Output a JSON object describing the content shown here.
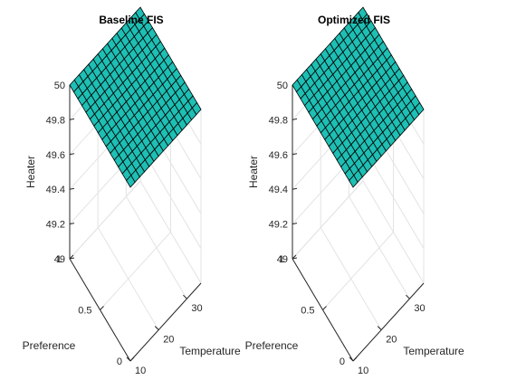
{
  "figure": {
    "background": "#ffffff"
  },
  "chart_data": [
    {
      "type": "surface",
      "title": "Baseline FIS",
      "xlabel": "Temperature",
      "ylabel": "Preference",
      "zlabel": "Heater",
      "xlim": [
        10,
        35
      ],
      "ylim": [
        0,
        1
      ],
      "zlim": [
        49,
        50
      ],
      "xticks": [
        "10",
        "20",
        "30"
      ],
      "yticks": [
        "0",
        "0.5",
        "1"
      ],
      "zticks": [
        "49",
        "49.2",
        "49.4",
        "49.6",
        "49.8",
        "50"
      ],
      "surface_value": 50,
      "mesh_divisions": 15,
      "face_color": "#1ebfb4",
      "edge_color": "#000000",
      "grid": true
    },
    {
      "type": "surface",
      "title": "Optimized FIS",
      "xlabel": "Temperature",
      "ylabel": "Preference",
      "zlabel": "Heater",
      "xlim": [
        10,
        35
      ],
      "ylim": [
        0,
        1
      ],
      "zlim": [
        49,
        50
      ],
      "xticks": [
        "10",
        "20",
        "30"
      ],
      "yticks": [
        "0",
        "0.5",
        "1"
      ],
      "zticks": [
        "49",
        "49.2",
        "49.4",
        "49.6",
        "49.8",
        "50"
      ],
      "surface_value": 50,
      "mesh_divisions": 15,
      "face_color": "#1ebfb4",
      "edge_color": "#000000",
      "grid": true
    }
  ]
}
